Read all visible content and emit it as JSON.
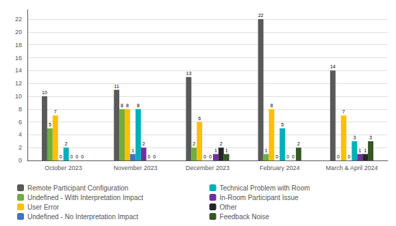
{
  "chart_data": {
    "type": "bar",
    "categories": [
      "October 2023",
      "November 2023",
      "December 2023",
      "February 2024",
      "March & April 2024"
    ],
    "series": [
      {
        "name": "Remote Participant Configuration",
        "color": "#595959",
        "values": [
          10,
          11,
          13,
          22,
          14
        ]
      },
      {
        "name": "Undefined - With Interpretation Impact",
        "color": "#70AD47",
        "values": [
          5,
          8,
          2,
          1,
          0
        ]
      },
      {
        "name": "User Error",
        "color": "#FFC000",
        "values": [
          7,
          8,
          6,
          8,
          7
        ]
      },
      {
        "name": "Undefined - No Interpretation Impact",
        "color": "#4472C4",
        "values": [
          0,
          1,
          0,
          0,
          0
        ]
      },
      {
        "name": "Technical Problem with Room",
        "color": "#00B0B9",
        "values": [
          2,
          8,
          0,
          5,
          3
        ]
      },
      {
        "name": "In-Room Participant Issue",
        "color": "#7030A0",
        "values": [
          0,
          2,
          1,
          0,
          1
        ]
      },
      {
        "name": "Other",
        "color": "#262626",
        "values": [
          0,
          0,
          2,
          0,
          1
        ]
      },
      {
        "name": "Feedback Noise",
        "color": "#375623",
        "values": [
          0,
          0,
          1,
          2,
          3
        ]
      }
    ],
    "ylim": [
      0,
      23.5
    ],
    "yticks": [
      0,
      2,
      4,
      6,
      8,
      10,
      12,
      14,
      16,
      18,
      20,
      22
    ],
    "grid": true,
    "legend": "bottom",
    "data_labels": true
  }
}
